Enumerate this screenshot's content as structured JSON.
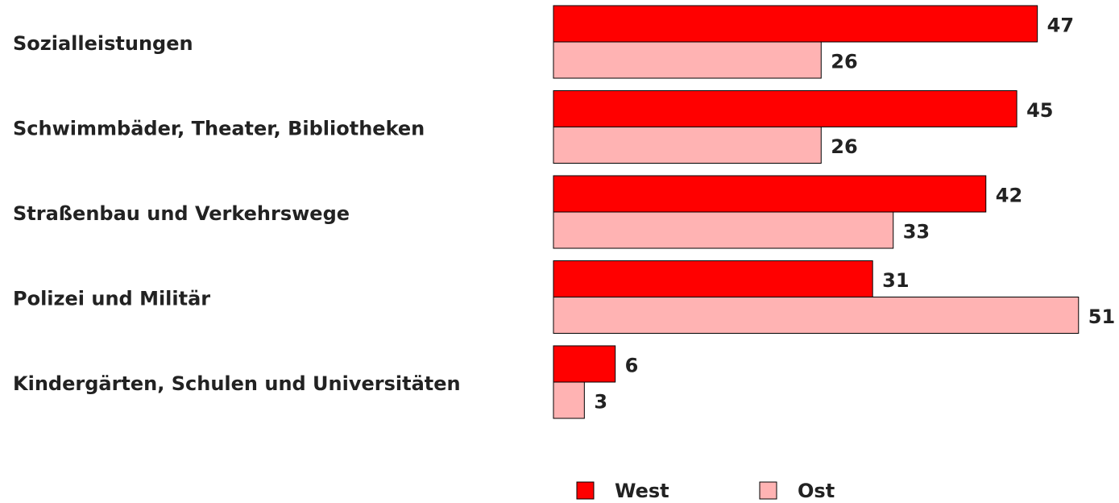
{
  "chart_data": {
    "type": "bar",
    "orientation": "horizontal",
    "categories": [
      "Sozialleistungen",
      "Schwimmbäder, Theater, Bibliotheken",
      "Straßenbau und Verkehrswege",
      "Polizei und Militär",
      "Kindergärten, Schulen und Universitäten"
    ],
    "series": [
      {
        "name": "West",
        "color": "#ff0000",
        "values": [
          47,
          45,
          42,
          31,
          6
        ]
      },
      {
        "name": "Ost",
        "color": "#ffb3b3",
        "values": [
          26,
          26,
          33,
          51,
          3
        ]
      }
    ],
    "legend": "bottom"
  }
}
